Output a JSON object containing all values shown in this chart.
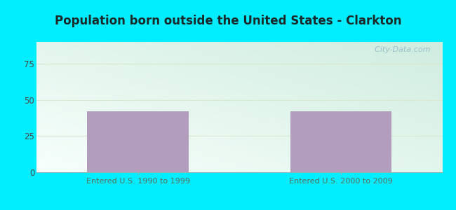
{
  "title": "Population born outside the United States - Clarkton",
  "categories": [
    "Entered U.S. 1990 to 1999",
    "Entered U.S. 2000 to 2009"
  ],
  "values": [
    42,
    42
  ],
  "bar_color": "#b39dbd",
  "ylim": [
    0,
    90
  ],
  "yticks": [
    0,
    25,
    50,
    75
  ],
  "background_outer": "#00eeff",
  "title_fontsize": 12,
  "tick_label_color": "#4a4a4a",
  "xlabel_color": "#5d6b5d",
  "watermark_text": "  City-Data.com",
  "watermark_color": "#90b8c8",
  "grid_color": "#d8e8d0",
  "grad_top_left": "#d0ede0",
  "grad_bottom_right": "#f8fffc"
}
